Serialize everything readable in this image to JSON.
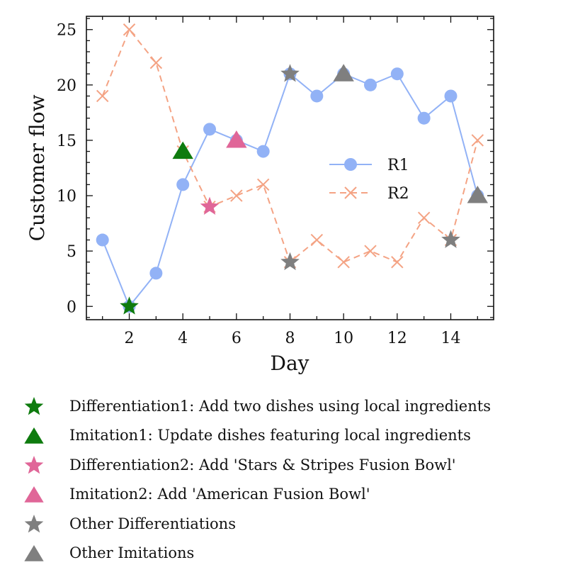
{
  "chart_data": {
    "type": "line",
    "xlabel": "Day",
    "ylabel": "Customer flow",
    "xlim": [
      0.4,
      15.6
    ],
    "ylim": [
      -1.2,
      26.2
    ],
    "xticks": [
      2,
      4,
      6,
      8,
      10,
      12,
      14
    ],
    "yticks": [
      0,
      5,
      10,
      15,
      20,
      25
    ],
    "x": [
      1,
      2,
      3,
      4,
      5,
      6,
      7,
      8,
      9,
      10,
      11,
      12,
      13,
      14,
      15
    ],
    "series": [
      {
        "name": "R1",
        "marker": "circle",
        "linestyle": "solid",
        "color": "#92b2f6",
        "values": [
          6,
          0,
          3,
          11,
          16,
          15,
          14,
          21,
          19,
          21,
          20,
          21,
          17,
          19,
          10
        ]
      },
      {
        "name": "R2",
        "marker": "x",
        "linestyle": "dashed",
        "color": "#f4a384",
        "values": [
          19,
          25,
          22,
          14,
          9,
          10,
          11,
          4,
          6,
          4,
          5,
          4,
          8,
          6,
          15
        ]
      }
    ],
    "legend_position": "center-right",
    "annotations": [
      {
        "label": "Differentiation1: Add two dishes using local ingredients",
        "marker": "star",
        "color": "#0e7b0e",
        "x": 2,
        "y": 0
      },
      {
        "label": "Imitation1: Update dishes featuring local ingredients",
        "marker": "triangle",
        "color": "#0e7b0e",
        "x": 4,
        "y": 14
      },
      {
        "label": "Differentiation2: Add 'Stars & Stripes Fusion Bowl'",
        "marker": "star",
        "color": "#e06698",
        "x": 5,
        "y": 9
      },
      {
        "label": "Imitation2: Add 'American Fusion Bowl'",
        "marker": "triangle",
        "color": "#e06698",
        "x": 6,
        "y": 15
      },
      {
        "label": "Other Differentiations",
        "marker": "star",
        "color": "#7f7f7f",
        "x": 8,
        "y": 21
      },
      {
        "label": "Other Differentiations",
        "marker": "star",
        "color": "#7f7f7f",
        "x": 8,
        "y": 4
      },
      {
        "label": "Other Differentiations",
        "marker": "star",
        "color": "#7f7f7f",
        "x": 14,
        "y": 6
      },
      {
        "label": "Other Imitations",
        "marker": "triangle",
        "color": "#7f7f7f",
        "x": 10,
        "y": 21
      },
      {
        "label": "Other Imitations",
        "marker": "triangle",
        "color": "#7f7f7f",
        "x": 15,
        "y": 10
      }
    ]
  },
  "bottom_legend": [
    {
      "label": "Differentiation1: Add two dishes using local ingredients",
      "marker": "star",
      "color": "#0e7b0e"
    },
    {
      "label": "Imitation1: Update dishes featuring local ingredients",
      "marker": "triangle",
      "color": "#0e7b0e"
    },
    {
      "label": "Differentiation2: Add 'Stars & Stripes Fusion Bowl'",
      "marker": "star",
      "color": "#e06698"
    },
    {
      "label": "Imitation2: Add 'American Fusion Bowl'",
      "marker": "triangle",
      "color": "#e06698"
    },
    {
      "label": "Other Differentiations",
      "marker": "star",
      "color": "#7f7f7f"
    },
    {
      "label": "Other Imitations",
      "marker": "triangle",
      "color": "#7f7f7f"
    }
  ]
}
